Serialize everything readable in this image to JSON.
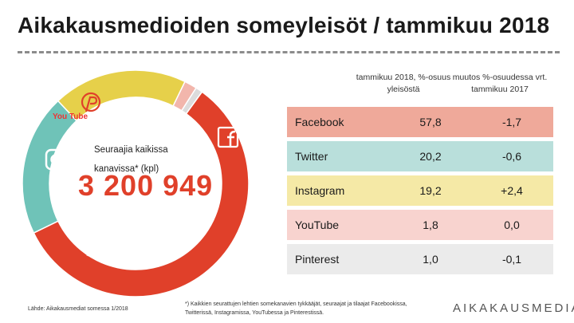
{
  "header": {
    "title": "Aikakausmedioiden someyleisöt / tammikuu 2018"
  },
  "center": {
    "label": "Seuraajia kaikissa kanavissa* (kpl)",
    "value": "3 200 949"
  },
  "table": {
    "col1_header": "tammikuu 2018, %-osuus yleisöstä",
    "col2_header": "muutos %-osuudessa vrt. tammikuu 2017",
    "rows": [
      {
        "name": "Facebook",
        "share": "57,8",
        "change": "-1,7",
        "bg": "#efa99a"
      },
      {
        "name": "Twitter",
        "share": "20,2",
        "change": "-0,6",
        "bg": "#b9dfdb"
      },
      {
        "name": "Instagram",
        "share": "19,2",
        "change": "+2,4",
        "bg": "#f5e9a6"
      },
      {
        "name": "YouTube",
        "share": "1,8",
        "change": "0,0",
        "bg": "#f8d3cf"
      },
      {
        "name": "Pinterest",
        "share": "1,0",
        "change": "-0,1",
        "bg": "#ebebeb"
      }
    ]
  },
  "icons": {
    "youtube_text": "You Tube"
  },
  "footer": {
    "source": "Lähde: Aikakausmediat somessa 1/2018",
    "footnote": "*) Kaikkien seurattujen lehtien somekanavien tykkääjät, seuraajat ja tilaajat Facebookissa, Twitterissä, Instagramissa, YouTubessa ja Pinterestissä.",
    "logo": "AIKAKAUSMEDIA"
  },
  "chart_data": {
    "type": "pie",
    "donut": true,
    "categories": [
      "Facebook",
      "Twitter",
      "Instagram",
      "YouTube",
      "Pinterest"
    ],
    "values": [
      57.8,
      20.2,
      19.2,
      1.8,
      1.0
    ],
    "colors": [
      "#e0402a",
      "#6fc3b8",
      "#e6d04a",
      "#f2b6ac",
      "#dcdcdc"
    ],
    "total_label": "3 200 949"
  }
}
